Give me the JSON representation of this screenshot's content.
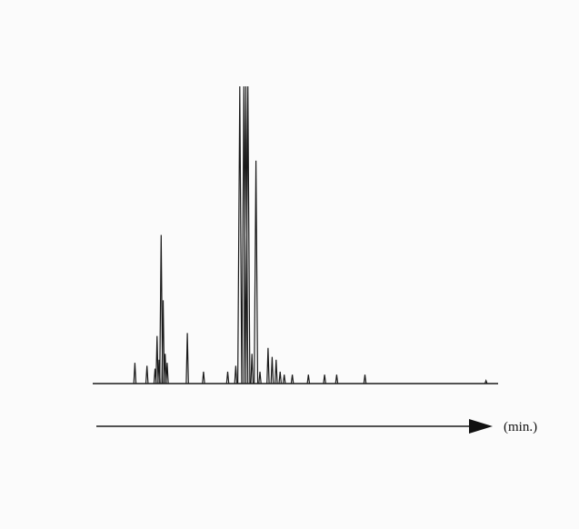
{
  "chart_data": {
    "type": "line",
    "title": "",
    "xlabel": "(min.)",
    "ylabel": "",
    "grid": false,
    "legend": "none",
    "x_axis_arrow": true,
    "xlim": [
      0,
      100
    ],
    "ylim": [
      0,
      100
    ],
    "series": [
      {
        "x": [
          10,
          13,
          15,
          15.5,
          16,
          16.5,
          17,
          17.5,
          18,
          23,
          27,
          33,
          35,
          36,
          37,
          37.5,
          38,
          39,
          40,
          41,
          43,
          44,
          45,
          46,
          47,
          49,
          53,
          57,
          60,
          67,
          97
        ],
        "values": [
          7,
          6,
          5,
          16,
          8,
          50,
          28,
          10,
          7,
          17,
          4,
          4,
          6,
          100,
          100,
          100,
          100,
          10,
          75,
          4,
          12,
          9,
          8,
          4,
          3,
          3,
          3,
          3,
          3,
          3,
          1
        ]
      }
    ],
    "colors": {
      "trace": "#1a1a1a",
      "background": "#fbfbfb"
    }
  }
}
